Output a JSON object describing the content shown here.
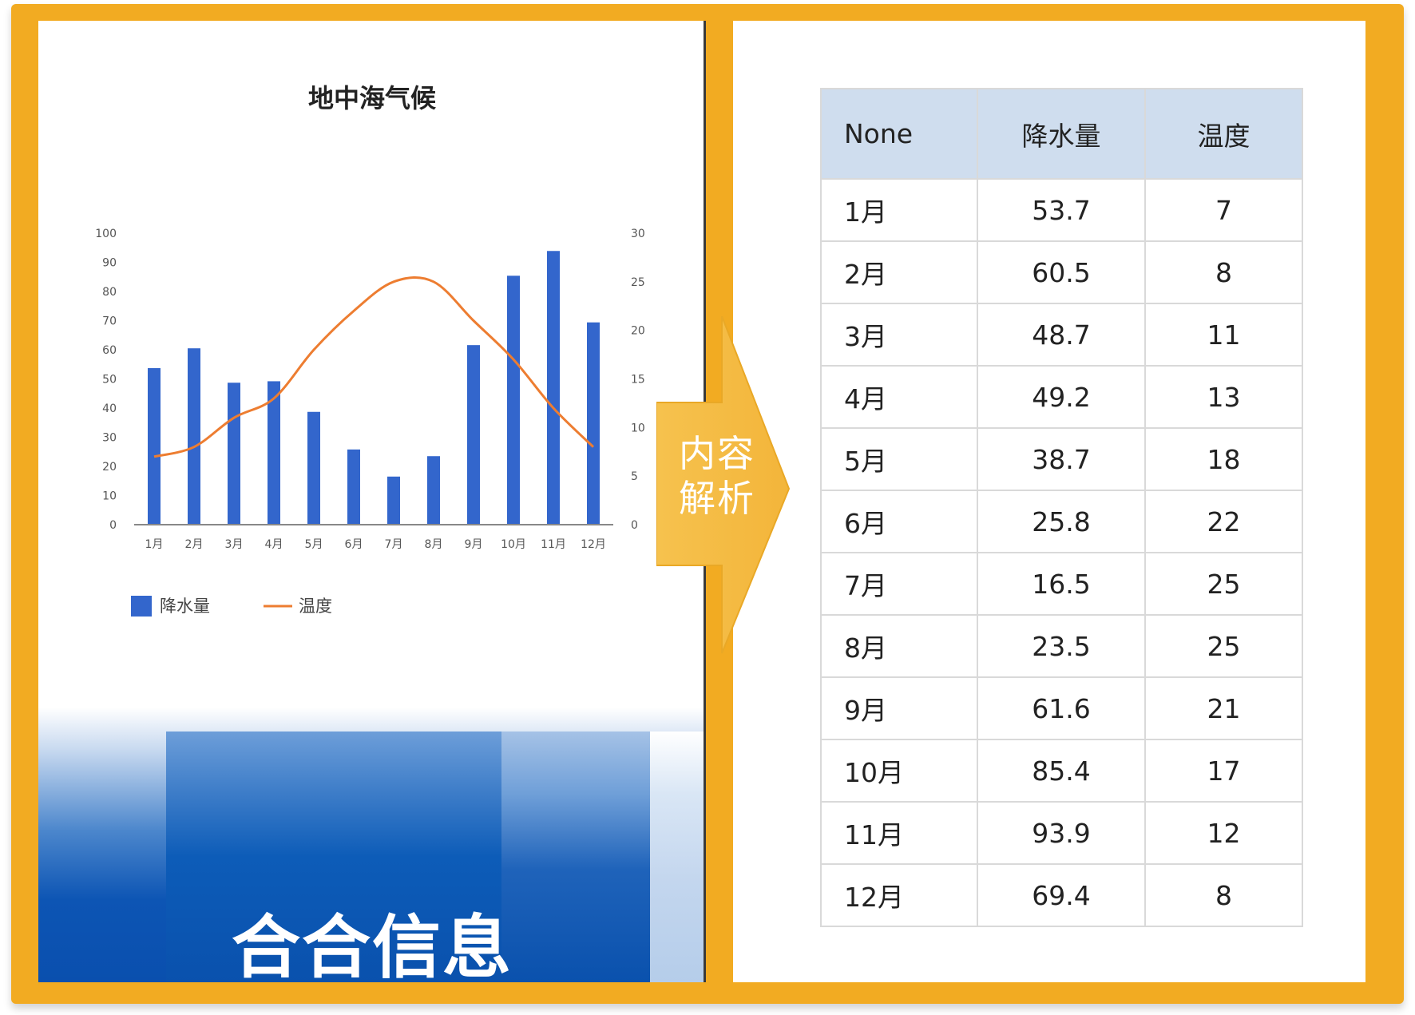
{
  "chart_data": {
    "type": "bar",
    "title": "地中海气候",
    "categories": [
      "1月",
      "2月",
      "3月",
      "4月",
      "5月",
      "6月",
      "7月",
      "8月",
      "9月",
      "10月",
      "11月",
      "12月"
    ],
    "series": [
      {
        "name": "降水量",
        "type": "bar",
        "axis": "left",
        "color": "#3366CC",
        "values": [
          53.7,
          60.5,
          48.7,
          49.2,
          38.7,
          25.8,
          16.5,
          23.5,
          61.6,
          85.4,
          93.9,
          69.4
        ]
      },
      {
        "name": "温度",
        "type": "line",
        "axis": "right",
        "color": "#ED7D31",
        "values": [
          7,
          8,
          11,
          13,
          18,
          22,
          25,
          25,
          21,
          17,
          12,
          8
        ]
      }
    ],
    "y_left": {
      "min": 0,
      "max": 100,
      "ticks": [
        0,
        10,
        20,
        30,
        40,
        50,
        60,
        70,
        80,
        90,
        100
      ]
    },
    "y_right": {
      "min": 0,
      "max": 30,
      "ticks": [
        0,
        5,
        10,
        15,
        20,
        25,
        30
      ]
    },
    "legend": "bottom-left",
    "grid": false
  },
  "arrow_label": [
    "内容",
    "解析"
  ],
  "brand": "合合信息",
  "table": {
    "headers": [
      "None",
      "降水量",
      "温度"
    ],
    "rows": [
      [
        "1月",
        "53.7",
        "7"
      ],
      [
        "2月",
        "60.5",
        "8"
      ],
      [
        "3月",
        "48.7",
        "11"
      ],
      [
        "4月",
        "49.2",
        "13"
      ],
      [
        "5月",
        "38.7",
        "18"
      ],
      [
        "6月",
        "25.8",
        "22"
      ],
      [
        "7月",
        "16.5",
        "25"
      ],
      [
        "8月",
        "23.5",
        "25"
      ],
      [
        "9月",
        "61.6",
        "21"
      ],
      [
        "10月",
        "85.4",
        "17"
      ],
      [
        "11月",
        "93.9",
        "12"
      ],
      [
        "12月",
        "69.4",
        "8"
      ]
    ]
  }
}
